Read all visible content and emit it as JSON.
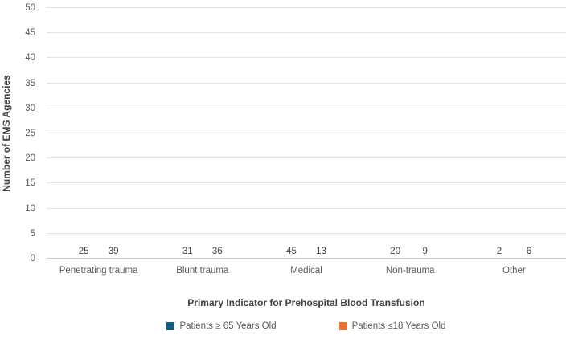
{
  "chart_data": {
    "type": "bar",
    "title": "",
    "xlabel": "Primary Indicator for Prehospital Blood Transfusion",
    "ylabel": "Number of EMS Agencies",
    "ylim": [
      0,
      50
    ],
    "ytick_step": 5,
    "grid": "horizontal",
    "legend_position": "bottom",
    "categories": [
      "Penetrating trauma",
      "Blunt trauma",
      "Medical",
      "Non-trauma",
      "Other"
    ],
    "series": [
      {
        "name": "Patients ≥ 65 Years Old",
        "color": "#156082",
        "values": [
          25,
          31,
          45,
          20,
          2
        ]
      },
      {
        "name": "Patients ≤18 Years Old",
        "color": "#E97132",
        "values": [
          39,
          36,
          13,
          9,
          6
        ]
      }
    ],
    "colors": {
      "gridline": "#e3e3e3",
      "axis_line": "#c9c9c9",
      "tick_label": "#595959",
      "data_label": "#404040",
      "axis_title": "#404040"
    }
  }
}
